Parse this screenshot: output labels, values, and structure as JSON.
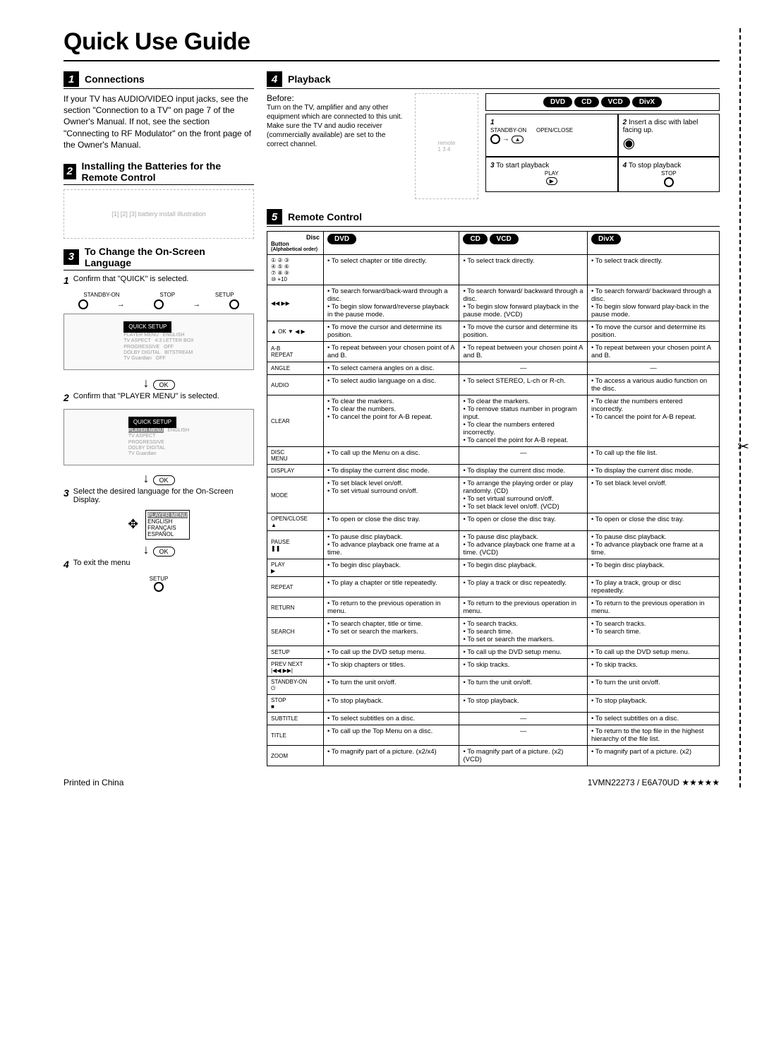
{
  "title": "Quick Use Guide",
  "sections": {
    "s1": {
      "num": "1",
      "title": "Connections",
      "text": "If your TV has AUDIO/VIDEO input jacks, see the section \"Connection to a TV\" on page 7 of the Owner's Manual. If not, see the section \"Connecting to RF Modulator\" on the front page of the Owner's Manual."
    },
    "s2": {
      "num": "2",
      "title": "Installing the Batteries for the Remote Control"
    },
    "s3": {
      "num": "3",
      "title": "To Change the On-Screen Language",
      "step1": "Confirm that \"QUICK\" is selected.",
      "step2": "Confirm that \"PLAYER MENU\" is selected.",
      "step3": "Select the desired language for the On-Screen Display.",
      "step4": "To exit the menu",
      "ok": "OK",
      "labels": {
        "standby": "STANDBY-ON",
        "stop": "STOP",
        "setup": "SETUP"
      },
      "osd1": {
        "hdr": "QUICK SETUP",
        "rows": [
          "PLAYER MENU",
          "TV ASPECT",
          "PROGRESSIVE",
          "DOLBY DIGITAL",
          "TV Guardian"
        ],
        "vals": [
          "ENGLISH",
          "4:3 LETTER BOX",
          "OFF",
          "BITSTREAM",
          "OFF"
        ]
      },
      "osd3": {
        "hdr": "PLAYER MENU",
        "rows": [
          "ENGLISH",
          "FRANÇAIS",
          "ESPAÑOL"
        ]
      }
    },
    "s4": {
      "num": "4",
      "title": "Playback",
      "before": "Before:",
      "before_text": "Turn on the TV, amplifier and any other equipment which are connected to this unit. Make sure the TV and audio receiver (commercially available) are set to the correct channel.",
      "pills": [
        "DVD",
        "CD",
        "VCD",
        "DivX"
      ],
      "steps": {
        "n1": "1",
        "n2": "2",
        "n3": "3",
        "n4": "4",
        "t2": "Insert a disc with label facing up.",
        "t3": "To start playback",
        "t4": "To stop playback",
        "standby": "STANDBY-ON",
        "open": "OPEN/CLOSE",
        "play": "PLAY",
        "stop": "STOP"
      }
    },
    "s5": {
      "num": "5",
      "title": "Remote Control",
      "col_hdr": {
        "btn": "Button",
        "btn_sub": "(Alphabetical order)",
        "disc": "Disc"
      },
      "pills": [
        "DVD",
        "CD",
        "VCD",
        "DivX"
      ],
      "rows": [
        {
          "btn": "① ② ③\n④ ⑤ ⑥\n⑦ ⑧ ⑨\n⑩ +10",
          "dvd": [
            "To select chapter or title directly."
          ],
          "cd": [
            "To select track directly."
          ],
          "divx": [
            "To select track directly."
          ]
        },
        {
          "btn": "◀◀ ▶▶",
          "dvd": [
            "To search forward/back-ward through a disc.",
            "To begin slow forward/reverse playback in the pause mode."
          ],
          "cd": [
            "To search forward/ backward through a disc.",
            "To begin slow forward playback in the pause mode. (VCD)"
          ],
          "divx": [
            "To search forward/ backward through a disc.",
            "To begin slow forward play-back in the pause mode."
          ]
        },
        {
          "btn": "▲ OK ▼ ◀ ▶",
          "dvd": [
            "To move the cursor and determine its position."
          ],
          "cd": [
            "To move the cursor and determine its position."
          ],
          "divx": [
            "To move the cursor and determine its position."
          ]
        },
        {
          "btn": "A-B\nREPEAT",
          "dvd": [
            "To repeat between your chosen point of A and B."
          ],
          "cd": [
            "To repeat between your chosen point A and B."
          ],
          "divx": [
            "To repeat between your chosen point A and B."
          ]
        },
        {
          "btn": "ANGLE",
          "dvd": [
            "To select camera angles on a disc."
          ],
          "cd": [
            "—"
          ],
          "divx": [
            "—"
          ]
        },
        {
          "btn": "AUDIO",
          "dvd": [
            "To select audio language on a disc."
          ],
          "cd": [
            "To select STEREO, L-ch or R-ch."
          ],
          "divx": [
            "To access a various audio function on the disc."
          ]
        },
        {
          "btn": "CLEAR",
          "dvd": [
            "To clear the markers.",
            "To clear the numbers.",
            "To cancel the point for A-B repeat."
          ],
          "cd": [
            "To clear the markers.",
            "To remove status number in program input.",
            "To clear the numbers entered incorrectly.",
            "To cancel the point for A-B repeat."
          ],
          "divx": [
            "To clear the numbers entered incorrectly.",
            "To cancel the point for A-B repeat."
          ]
        },
        {
          "btn": "DISC\nMENU",
          "dvd": [
            "To call up the Menu on a disc."
          ],
          "cd": [
            "—"
          ],
          "divx": [
            "To call up the file list."
          ]
        },
        {
          "btn": "DISPLAY",
          "dvd": [
            "To display the current disc mode."
          ],
          "cd": [
            "To display the current disc mode."
          ],
          "divx": [
            "To display the current disc mode."
          ]
        },
        {
          "btn": "MODE",
          "dvd": [
            "To set black level on/off.",
            "To set virtual surround on/off."
          ],
          "cd": [
            "To arrange the playing order or play randomly. (CD)",
            "To set virtual surround on/off.",
            "To set black level on/off. (VCD)"
          ],
          "divx": [
            "To set black level on/off."
          ]
        },
        {
          "btn": "OPEN/CLOSE\n▲",
          "dvd": [
            "To open or close the disc tray."
          ],
          "cd": [
            "To open or close the disc tray."
          ],
          "divx": [
            "To open or close the disc tray."
          ]
        },
        {
          "btn": "PAUSE\n❚❚",
          "dvd": [
            "To pause disc playback.",
            "To advance playback one frame at a time."
          ],
          "cd": [
            "To pause disc playback.",
            "To advance playback one frame at a time. (VCD)"
          ],
          "divx": [
            "To pause disc playback.",
            "To advance playback one frame at a time."
          ]
        },
        {
          "btn": "PLAY\n▶",
          "dvd": [
            "To begin disc playback."
          ],
          "cd": [
            "To begin disc playback."
          ],
          "divx": [
            "To begin disc playback."
          ]
        },
        {
          "btn": "REPEAT",
          "dvd": [
            "To play a chapter or title repeatedly."
          ],
          "cd": [
            "To play a track or disc repeatedly."
          ],
          "divx": [
            "To play a track, group or disc repeatedly."
          ]
        },
        {
          "btn": "RETURN",
          "dvd": [
            "To return to the previous operation in menu."
          ],
          "cd": [
            "To return to the previous operation in menu."
          ],
          "divx": [
            "To return to the previous operation in menu."
          ]
        },
        {
          "btn": "SEARCH",
          "dvd": [
            "To search chapter, title or time.",
            "To set or search the markers."
          ],
          "cd": [
            "To search tracks.",
            "To search time.",
            "To set or search the markers."
          ],
          "divx": [
            "To search tracks.",
            "To search time."
          ]
        },
        {
          "btn": "SETUP",
          "dvd": [
            "To call up the DVD setup menu."
          ],
          "cd": [
            "To call up the DVD setup menu."
          ],
          "divx": [
            "To call up the DVD setup menu."
          ]
        },
        {
          "btn": "PREV  NEXT\n|◀◀  ▶▶|",
          "dvd": [
            "To skip chapters or titles."
          ],
          "cd": [
            "To skip tracks."
          ],
          "divx": [
            "To skip tracks."
          ]
        },
        {
          "btn": "STANDBY-ON\n⏻",
          "dvd": [
            "To turn the unit on/off."
          ],
          "cd": [
            "To turn the unit on/off."
          ],
          "divx": [
            "To turn the unit on/off."
          ]
        },
        {
          "btn": "STOP\n■",
          "dvd": [
            "To stop playback."
          ],
          "cd": [
            "To stop playback."
          ],
          "divx": [
            "To stop playback."
          ]
        },
        {
          "btn": "SUBTITLE",
          "dvd": [
            "To select subtitles on a disc."
          ],
          "cd": [
            "—"
          ],
          "divx": [
            "To select subtitles on a disc."
          ]
        },
        {
          "btn": "TITLE",
          "dvd": [
            "To call up the Top Menu on a disc."
          ],
          "cd": [
            "—"
          ],
          "divx": [
            "To return to the top file in the highest hierarchy of the file list."
          ]
        },
        {
          "btn": "ZOOM",
          "dvd": [
            "To magnify part of a picture. (x2/x4)"
          ],
          "cd": [
            "To magnify part of a picture. (x2) (VCD)"
          ],
          "divx": [
            "To magnify part of a picture. (x2)"
          ]
        }
      ]
    }
  },
  "footer": {
    "left": "Printed in China",
    "right": "1VMN22273 / E6A70UD ★★★★★"
  },
  "colors": {
    "black": "#000000",
    "white": "#ffffff"
  }
}
